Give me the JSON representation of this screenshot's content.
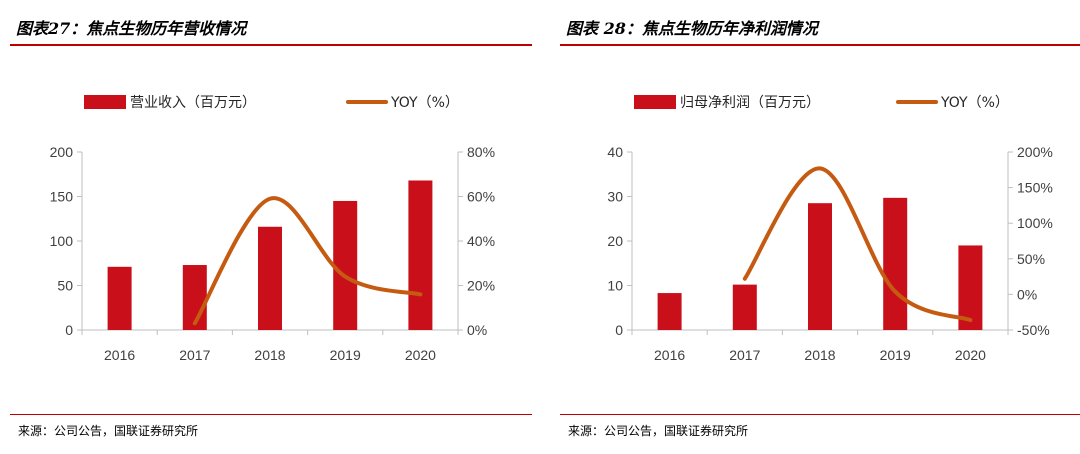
{
  "charts": [
    {
      "figure_title": "图表27：焦点生物历年营收情况",
      "source": "来源：公司公告，国联证券研究所",
      "colors": {
        "bar": "#c9101a",
        "line": "#c55a11",
        "rule": "#c00000"
      },
      "chart_data": {
        "type": "bar",
        "categories": [
          "2016",
          "2017",
          "2018",
          "2019",
          "2020"
        ],
        "series": [
          {
            "name": "营业收入（百万元）",
            "type": "bar",
            "axis": "left",
            "values": [
              71,
              73,
              116,
              145,
              168
            ]
          },
          {
            "name": "YOY（%）",
            "type": "line",
            "axis": "right",
            "values": [
              3,
              59,
              24,
              16
            ],
            "x": [
              "2017",
              "2018",
              "2019",
              "2020"
            ]
          }
        ],
        "left_axis": {
          "min": 0,
          "max": 200,
          "ticks": [
            "0",
            "50",
            "100",
            "150",
            "200"
          ]
        },
        "right_axis": {
          "min": 0,
          "max": 80,
          "ticks": [
            "0%",
            "20%",
            "40%",
            "60%",
            "80%"
          ]
        },
        "legend_position": "top",
        "grid": false
      }
    },
    {
      "figure_title": "图表 28：焦点生物历年净利润情况",
      "source": "来源：公司公告，国联证券研究所",
      "colors": {
        "bar": "#c9101a",
        "line": "#c55a11",
        "rule": "#c00000"
      },
      "chart_data": {
        "type": "bar",
        "categories": [
          "2016",
          "2017",
          "2018",
          "2019",
          "2020"
        ],
        "series": [
          {
            "name": "归母净利润（百万元）",
            "type": "bar",
            "axis": "left",
            "values": [
              8.3,
              10.2,
              28.5,
              29.7,
              19.0
            ]
          },
          {
            "name": "YOY（%）",
            "type": "line",
            "axis": "right",
            "values": [
              22,
              177,
              4,
              -36
            ],
            "x": [
              "2017",
              "2018",
              "2019",
              "2020"
            ]
          }
        ],
        "left_axis": {
          "min": 0,
          "max": 40,
          "ticks": [
            "0",
            "10",
            "20",
            "30",
            "40"
          ]
        },
        "right_axis": {
          "min": -50,
          "max": 200,
          "ticks": [
            "-50%",
            "0%",
            "50%",
            "100%",
            "150%",
            "200%"
          ]
        },
        "legend_position": "top",
        "grid": false
      }
    }
  ]
}
